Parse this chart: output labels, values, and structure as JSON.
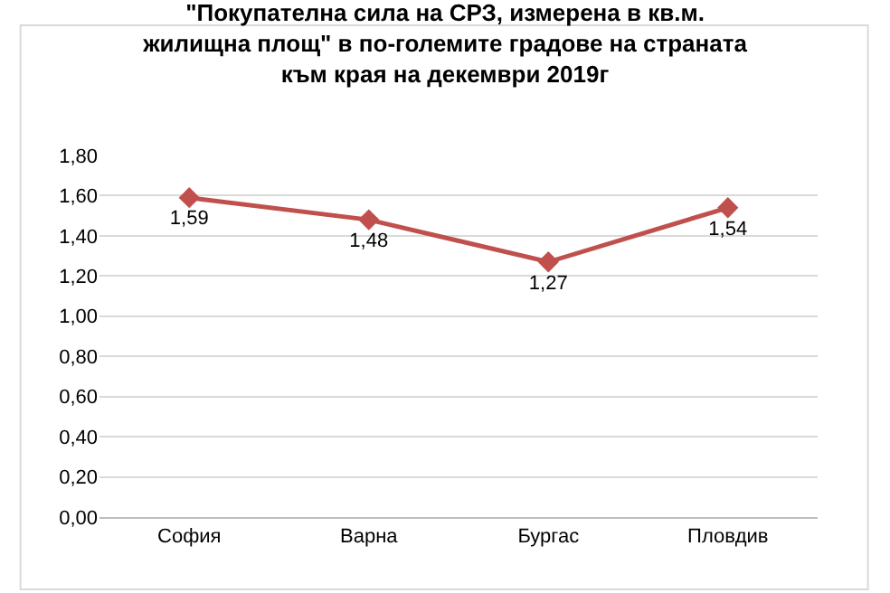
{
  "chart_data": {
    "type": "line",
    "title": "\"Покупателна сила на СРЗ, измерена в кв.м.\nжилищна площ\" в по-големите градове на страната\nкъм края на декември 2019г",
    "categories": [
      "София",
      "Варна",
      "Бургас",
      "Пловдив"
    ],
    "series": [
      {
        "color": "#c0504d",
        "values": [
          1.59,
          1.48,
          1.27,
          1.54
        ],
        "value_labels": [
          "1,59",
          "1,48",
          "1,27",
          "1,54"
        ]
      }
    ],
    "ylim": [
      0,
      1.8
    ],
    "yticks": [
      {
        "value": 0,
        "label": "0,00"
      },
      {
        "value": 0.2,
        "label": "0,20"
      },
      {
        "value": 0.4,
        "label": "0,40"
      },
      {
        "value": 0.6,
        "label": "0,60"
      },
      {
        "value": 0.8,
        "label": "0,80"
      },
      {
        "value": 1,
        "label": "1,00"
      },
      {
        "value": 1.2,
        "label": "1,20"
      },
      {
        "value": 1.4,
        "label": "1,40"
      },
      {
        "value": 1.6,
        "label": "1,60"
      },
      {
        "value": 1.8,
        "label": "1,80"
      }
    ],
    "grid": "y",
    "marker": "diamond",
    "line_style": "solid"
  }
}
